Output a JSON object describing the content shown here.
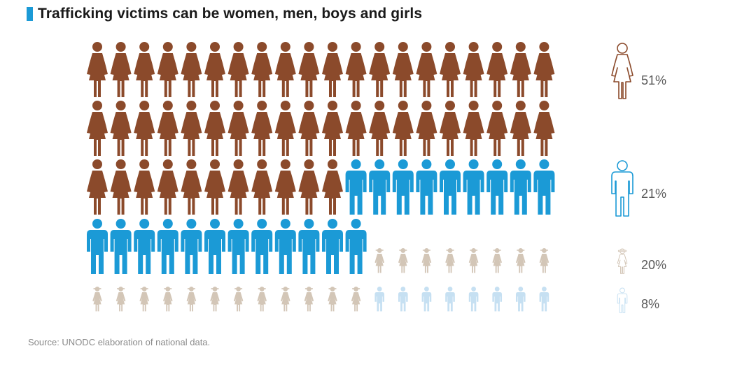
{
  "title": "Trafficking victims can be women, men, boys and girls",
  "source": "Source: UNODC elaboration of national data.",
  "colors": {
    "accent": "#1b9ad6",
    "women": "#8b4a2b",
    "men": "#1b9ad6",
    "girls": "#d3c6b7",
    "boys": "#c6e0f2"
  },
  "chart_data": {
    "type": "pictogram",
    "total_icons": 100,
    "icons_per_row": 20,
    "series": [
      {
        "name": "women",
        "label": "51%",
        "value": 51,
        "icon": "woman-icon",
        "color": "#8b4a2b"
      },
      {
        "name": "men",
        "label": "21%",
        "value": 21,
        "icon": "man-icon",
        "color": "#1b9ad6"
      },
      {
        "name": "girls",
        "label": "20%",
        "value": 20,
        "icon": "girl-icon",
        "color": "#d3c6b7"
      },
      {
        "name": "boys",
        "label": "8%",
        "value": 8,
        "icon": "boy-icon",
        "color": "#c6e0f2"
      }
    ]
  }
}
